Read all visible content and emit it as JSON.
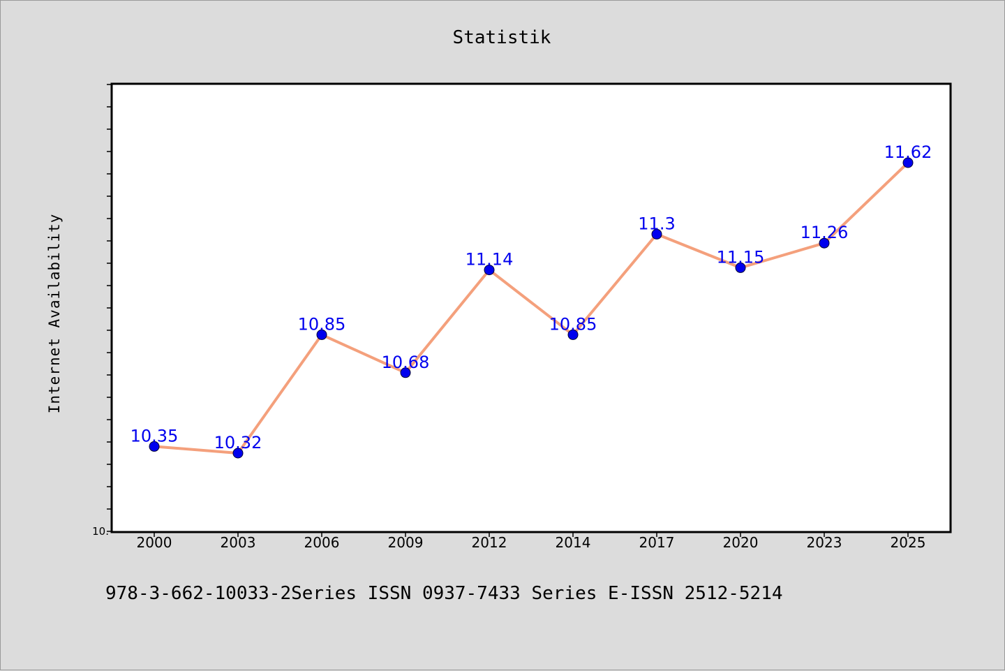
{
  "chart_data": {
    "type": "line",
    "title": "Statistik",
    "ylabel": "Internet Availability",
    "xlabel": "",
    "categories": [
      "2000",
      "2003",
      "2006",
      "2009",
      "2012",
      "2014",
      "2017",
      "2020",
      "2023",
      "2025"
    ],
    "values": [
      10.35,
      10.32,
      10.85,
      10.68,
      11.14,
      10.85,
      11.3,
      11.15,
      11.26,
      11.62
    ],
    "data_labels": [
      "10.35",
      "10.32",
      "10.85",
      "10.68",
      "11.14",
      "10.85",
      "11.3",
      "11.15",
      "11.26",
      "11.62"
    ],
    "ylim": [
      9.97,
      11.97
    ],
    "y_tick_label": "10.",
    "y_tick_label_value": 9.97,
    "y_minor_step": 0.1,
    "grid": false,
    "colors": {
      "line": "#f4a07c",
      "marker": "#0000ee",
      "label": "#0000ee",
      "plot_bg": "#ffffff",
      "page_bg": "#dcdcdc"
    }
  },
  "footnote": "978-3-662-10033-2Series ISSN 0937-7433 Series E-ISSN 2512-5214"
}
